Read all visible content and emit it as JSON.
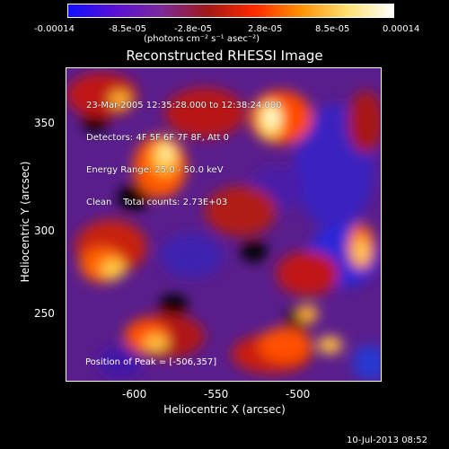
{
  "colorbar": {
    "tick_labels": [
      "-0.00014",
      "-8.5e-05",
      "-2.8e-05",
      "2.8e-05",
      "8.5e-05",
      "0.00014"
    ],
    "units_label": "(photons cm⁻² s⁻¹ asec⁻²)",
    "colors": [
      "#1010ff",
      "#5a10d8",
      "#7a2a9a",
      "#a01818",
      "#ff2800",
      "#ff9000",
      "#ffe070",
      "#ffffff"
    ]
  },
  "title": "Reconstructed RHESSI Image",
  "info": {
    "time_range": "23-Mar-2005 12:35:28.000 to 12:38:24.000",
    "detectors": "Detectors: 4F 5F 6F 7F 8F, Att 0",
    "energy_range": "Energy Range: 25.0 - 50.0 keV",
    "method": "Clean    Total counts: 2.73E+03"
  },
  "peak_label": "Position of Peak = [-506,357]",
  "axes": {
    "xlabel": "Heliocentric X (arcsec)",
    "ylabel": "Heliocentric Y (arcsec)",
    "x_ticks": [
      "-600",
      "-550",
      "-500"
    ],
    "y_ticks": [
      "350",
      "300",
      "250"
    ]
  },
  "footer": "10-Jul-2013 08:52"
}
